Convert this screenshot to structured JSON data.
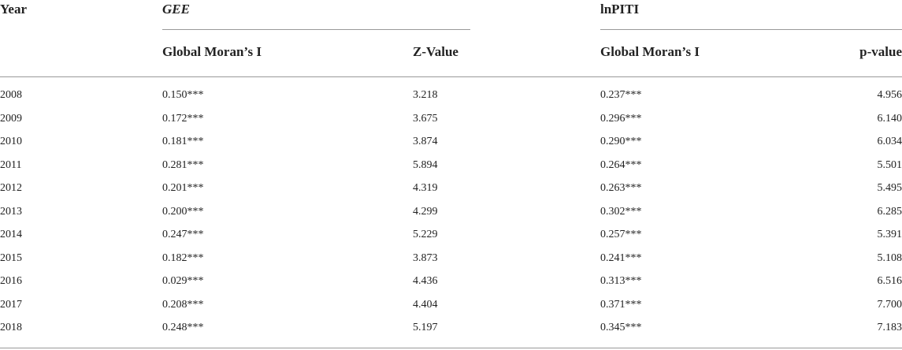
{
  "table": {
    "group_headers": [
      "Year",
      "GEE",
      "lnPITI"
    ],
    "sub_headers": [
      "Global Moran’s I",
      "Z-Value",
      "Global Moran’s I",
      "p-value"
    ],
    "rows": [
      [
        "2008",
        "0.150***",
        "3.218",
        "0.237***",
        "4.956"
      ],
      [
        "2009",
        "0.172***",
        "3.675",
        "0.296***",
        "6.140"
      ],
      [
        "2010",
        "0.181***",
        "3.874",
        "0.290***",
        "6.034"
      ],
      [
        "2011",
        "0.281***",
        "5.894",
        "0.264***",
        "5.501"
      ],
      [
        "2012",
        "0.201***",
        "4.319",
        "0.263***",
        "5.495"
      ],
      [
        "2013",
        "0.200***",
        "4.299",
        "0.302***",
        "6.285"
      ],
      [
        "2014",
        "0.247***",
        "5.229",
        "0.257***",
        "5.391"
      ],
      [
        "2015",
        "0.182***",
        "3.873",
        "0.241***",
        "5.108"
      ],
      [
        "2016",
        "0.029***",
        "4.436",
        "0.313***",
        "6.516"
      ],
      [
        "2017",
        "0.208***",
        "4.404",
        "0.371***",
        "7.700"
      ],
      [
        "2018",
        "0.248***",
        "5.197",
        "0.345***",
        "7.183"
      ]
    ]
  }
}
